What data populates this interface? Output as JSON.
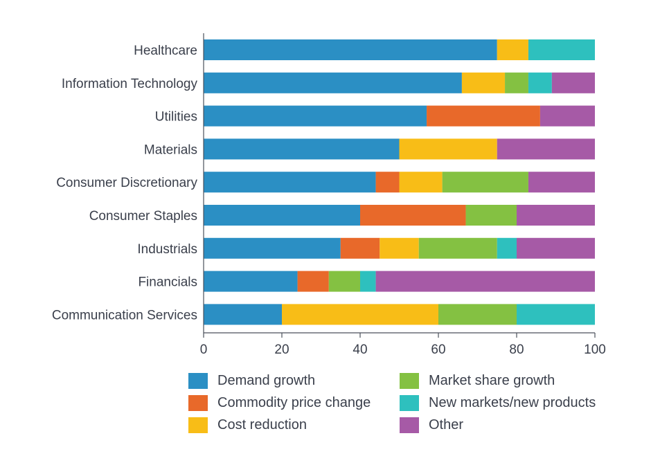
{
  "chart_data": {
    "type": "bar",
    "orientation": "horizontal",
    "stacked": true,
    "title": "",
    "xlabel": "",
    "ylabel": "",
    "xlim": [
      0,
      100
    ],
    "xticks": [
      0,
      20,
      40,
      60,
      80,
      100
    ],
    "grid": false,
    "legend_position": "bottom",
    "categories": [
      "Healthcare",
      "Information Technology",
      "Utilities",
      "Materials",
      "Consumer Discretionary",
      "Consumer Staples",
      "Industrials",
      "Financials",
      "Communication Services"
    ],
    "series": [
      {
        "name": "Demand growth",
        "color": "#2b8fc4",
        "values": [
          75,
          66,
          57,
          50,
          44,
          40,
          35,
          24,
          20
        ]
      },
      {
        "name": "Commodity price change",
        "color": "#e8692a",
        "values": [
          0,
          0,
          29,
          0,
          6,
          27,
          10,
          8,
          0
        ]
      },
      {
        "name": "Cost reduction",
        "color": "#f8bd17",
        "values": [
          8,
          11,
          0,
          25,
          11,
          0,
          10,
          0,
          40
        ]
      },
      {
        "name": "Market share growth",
        "color": "#84c142",
        "values": [
          0,
          6,
          0,
          0,
          22,
          13,
          20,
          8,
          20
        ]
      },
      {
        "name": "New markets/new products",
        "color": "#2ec0be",
        "values": [
          17,
          6,
          0,
          0,
          0,
          0,
          5,
          4,
          20
        ]
      },
      {
        "name": "Other",
        "color": "#a65aa6",
        "values": [
          0,
          11,
          14,
          25,
          17,
          20,
          20,
          56,
          0
        ]
      }
    ]
  }
}
